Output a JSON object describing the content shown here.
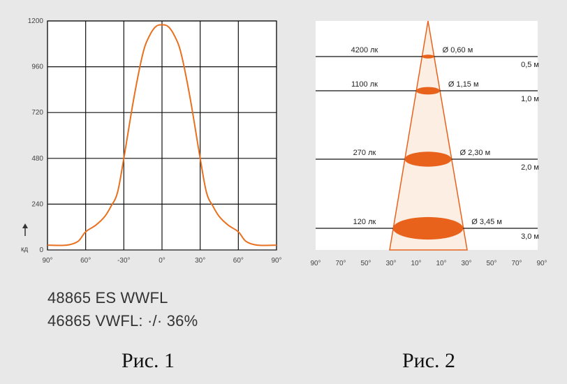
{
  "chart_data": [
    {
      "type": "line",
      "caption": "Рис. 1",
      "ylabel": "кд",
      "yticks": [
        "0",
        "240",
        "480",
        "720",
        "960",
        "1200"
      ],
      "xticks": [
        "90°",
        "60°",
        "-30°",
        "0°",
        "30°",
        "60°",
        "90°"
      ],
      "ylim": [
        0,
        1200
      ],
      "xlim": [
        -90,
        90
      ],
      "grid": true,
      "line_color": "#e8701e",
      "series": [
        {
          "x": [
            -90,
            -75,
            -66,
            -60,
            -52,
            -45,
            -40,
            -35,
            -30,
            -22,
            -15,
            -10,
            -5,
            0,
            5,
            10,
            15,
            22,
            30,
            35,
            40,
            45,
            52,
            60,
            66,
            75,
            90
          ],
          "values": [
            25,
            25,
            45,
            95,
            130,
            175,
            230,
            300,
            480,
            800,
            1030,
            1120,
            1170,
            1180,
            1170,
            1120,
            1030,
            800,
            480,
            300,
            230,
            175,
            130,
            95,
            45,
            25,
            25
          ]
        }
      ]
    },
    {
      "type": "diagram",
      "caption": "Рис. 2",
      "xticks": [
        "90°",
        "70°",
        "50°",
        "30°",
        "10°",
        "10°",
        "30°",
        "50°",
        "70°",
        "90°"
      ],
      "fill_color": "#e8621c",
      "levels": [
        {
          "lux": "4200 лк",
          "diameter": "Ø 0,60 м",
          "distance": "0,5 м"
        },
        {
          "lux": "1100 лк",
          "diameter": "Ø 1,15 м",
          "distance": "1,0 м"
        },
        {
          "lux": "270 лк",
          "diameter": "Ø 2,30 м",
          "distance": "2,0 м"
        },
        {
          "lux": "120 лк",
          "diameter": "Ø 3,45 м",
          "distance": "3,0 м"
        }
      ]
    }
  ],
  "notes": {
    "line1": "48865 ES WWFL",
    "line2": "46865 VWFL: ·/· 36%"
  }
}
